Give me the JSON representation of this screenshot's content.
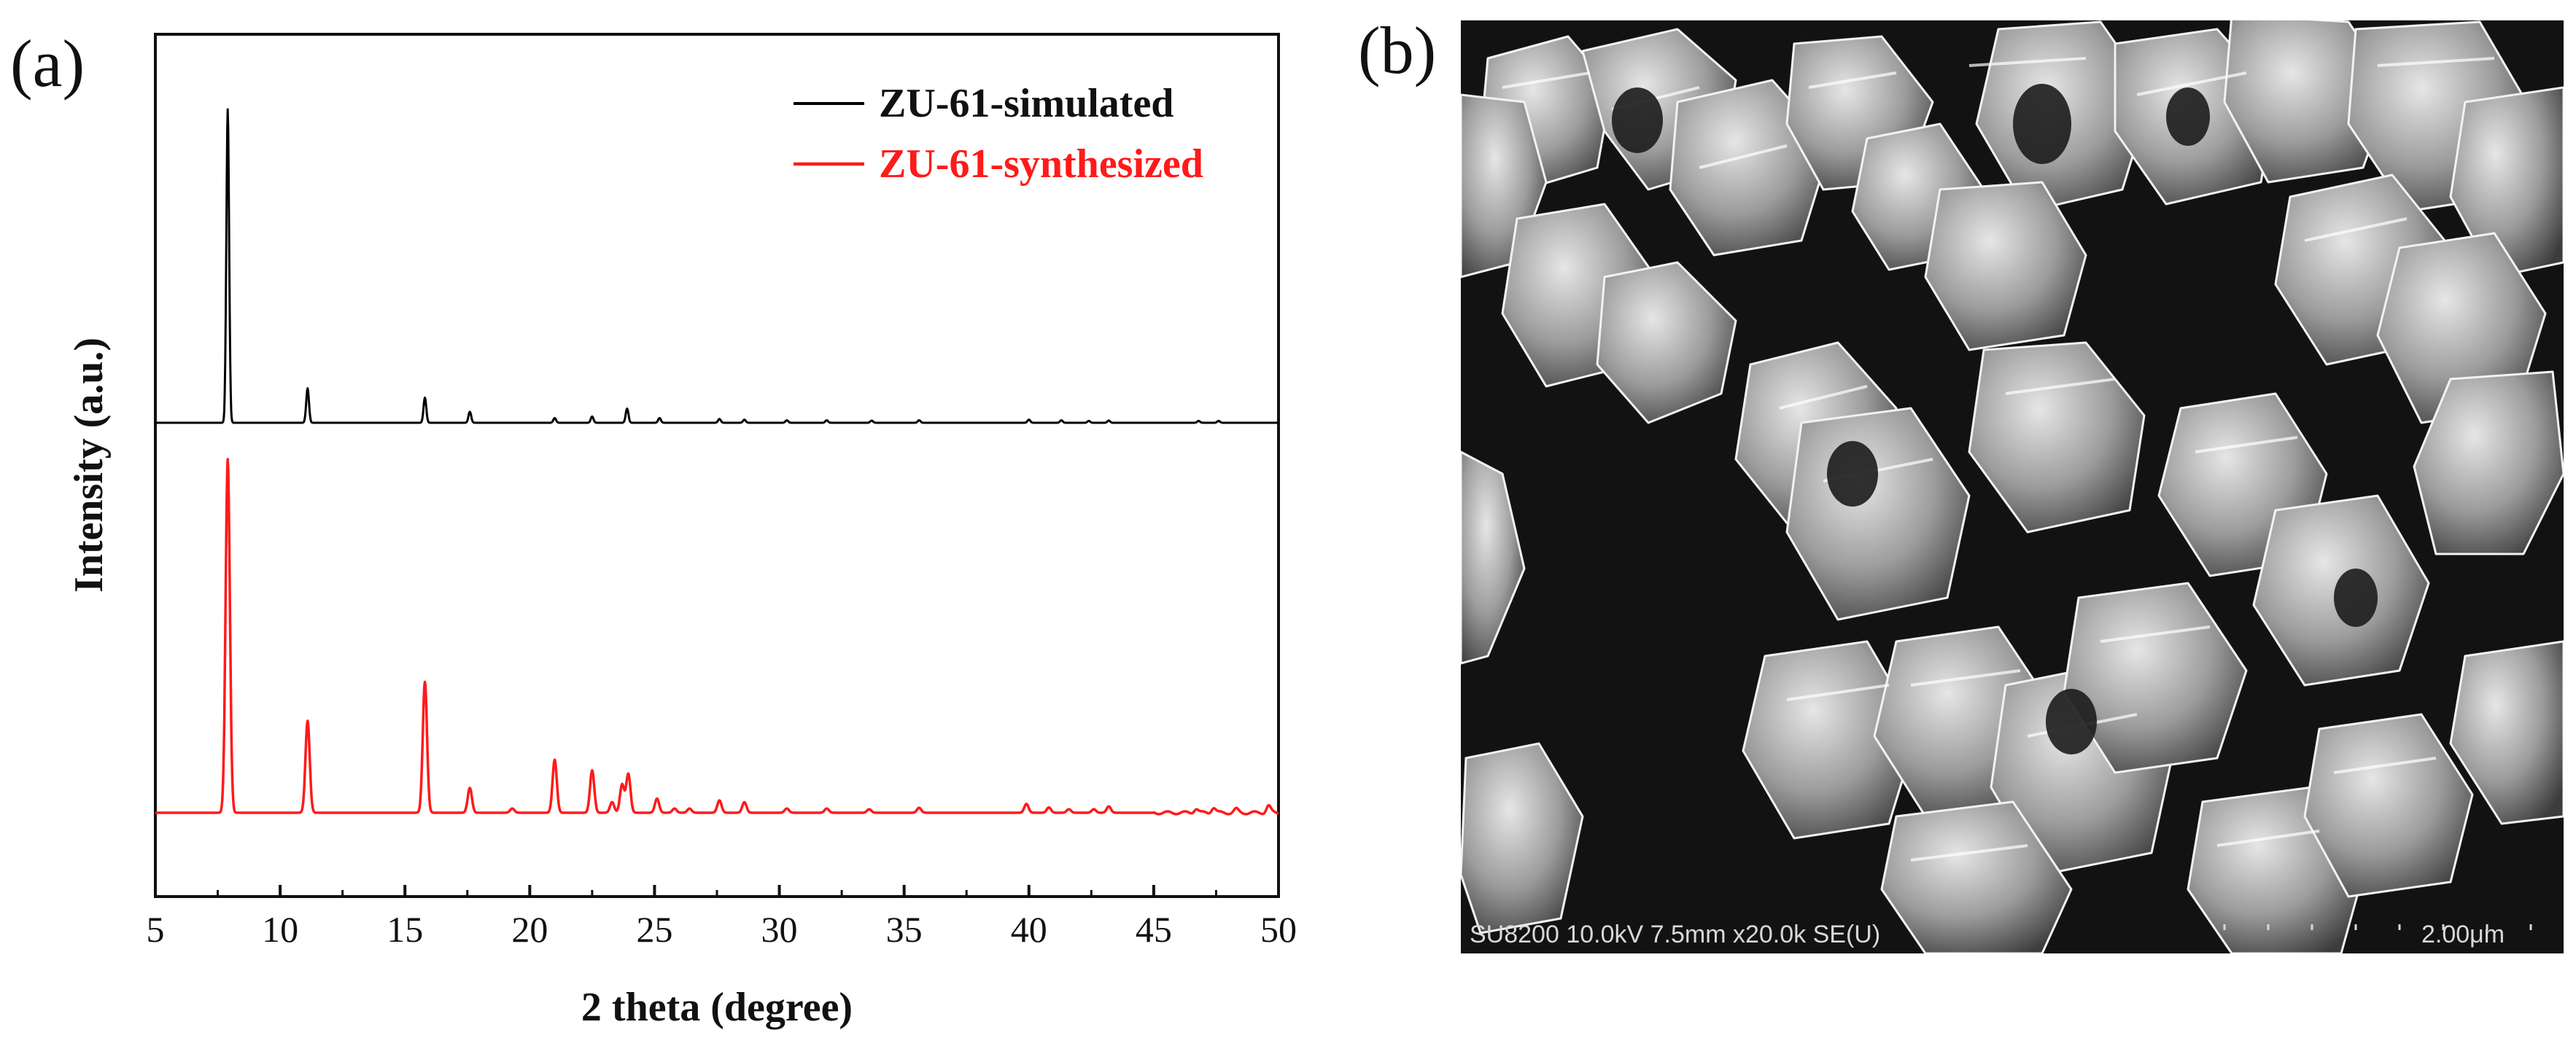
{
  "figure": {
    "panel_a_label": "(a)",
    "panel_b_label": "(b)"
  },
  "chart_data": {
    "type": "line",
    "xlabel": "2 theta (degree)",
    "ylabel": "Intensity (a.u.)",
    "xlim": [
      5,
      50
    ],
    "xticks": [
      5,
      10,
      15,
      20,
      25,
      30,
      35,
      40,
      45,
      50
    ],
    "yticks": [],
    "grid": false,
    "legend_position": "top-right",
    "series": [
      {
        "name": "ZU-61-simulated",
        "color": "#000000",
        "baseline": 0,
        "peaks": [
          {
            "x": 7.9,
            "h": 1.0
          },
          {
            "x": 11.1,
            "h": 0.11
          },
          {
            "x": 15.8,
            "h": 0.08
          },
          {
            "x": 17.6,
            "h": 0.035
          },
          {
            "x": 21.0,
            "h": 0.015
          },
          {
            "x": 22.5,
            "h": 0.02
          },
          {
            "x": 23.9,
            "h": 0.045
          },
          {
            "x": 25.2,
            "h": 0.015
          },
          {
            "x": 27.6,
            "h": 0.012
          },
          {
            "x": 28.6,
            "h": 0.01
          },
          {
            "x": 30.3,
            "h": 0.008
          },
          {
            "x": 31.9,
            "h": 0.008
          },
          {
            "x": 33.7,
            "h": 0.007
          },
          {
            "x": 35.6,
            "h": 0.008
          },
          {
            "x": 40.0,
            "h": 0.01
          },
          {
            "x": 41.3,
            "h": 0.008
          },
          {
            "x": 42.4,
            "h": 0.006
          },
          {
            "x": 43.2,
            "h": 0.007
          },
          {
            "x": 46.8,
            "h": 0.006
          },
          {
            "x": 47.6,
            "h": 0.006
          }
        ]
      },
      {
        "name": "ZU-61-synthesized",
        "color": "#ff1a1a",
        "baseline": 0,
        "peaks": [
          {
            "x": 7.9,
            "h": 1.0
          },
          {
            "x": 11.1,
            "h": 0.26
          },
          {
            "x": 15.8,
            "h": 0.37
          },
          {
            "x": 17.6,
            "h": 0.07
          },
          {
            "x": 19.3,
            "h": 0.012
          },
          {
            "x": 21.0,
            "h": 0.15
          },
          {
            "x": 22.5,
            "h": 0.12
          },
          {
            "x": 23.3,
            "h": 0.03
          },
          {
            "x": 23.7,
            "h": 0.08
          },
          {
            "x": 23.95,
            "h": 0.11
          },
          {
            "x": 25.1,
            "h": 0.04
          },
          {
            "x": 25.8,
            "h": 0.012
          },
          {
            "x": 26.4,
            "h": 0.012
          },
          {
            "x": 27.6,
            "h": 0.035
          },
          {
            "x": 28.6,
            "h": 0.03
          },
          {
            "x": 30.3,
            "h": 0.012
          },
          {
            "x": 31.9,
            "h": 0.012
          },
          {
            "x": 33.6,
            "h": 0.01
          },
          {
            "x": 35.6,
            "h": 0.014
          },
          {
            "x": 39.9,
            "h": 0.025
          },
          {
            "x": 40.8,
            "h": 0.015
          },
          {
            "x": 41.6,
            "h": 0.01
          },
          {
            "x": 42.6,
            "h": 0.01
          },
          {
            "x": 43.2,
            "h": 0.018
          },
          {
            "x": 46.7,
            "h": 0.012
          },
          {
            "x": 47.4,
            "h": 0.015
          },
          {
            "x": 48.3,
            "h": 0.01
          },
          {
            "x": 49.6,
            "h": 0.02
          }
        ]
      }
    ]
  },
  "sem_image": {
    "info_bar": "SU8200 10.0kV 7.5mm x20.0k SE(U)",
    "scale_label": "2.00μm",
    "background": "#121212"
  }
}
